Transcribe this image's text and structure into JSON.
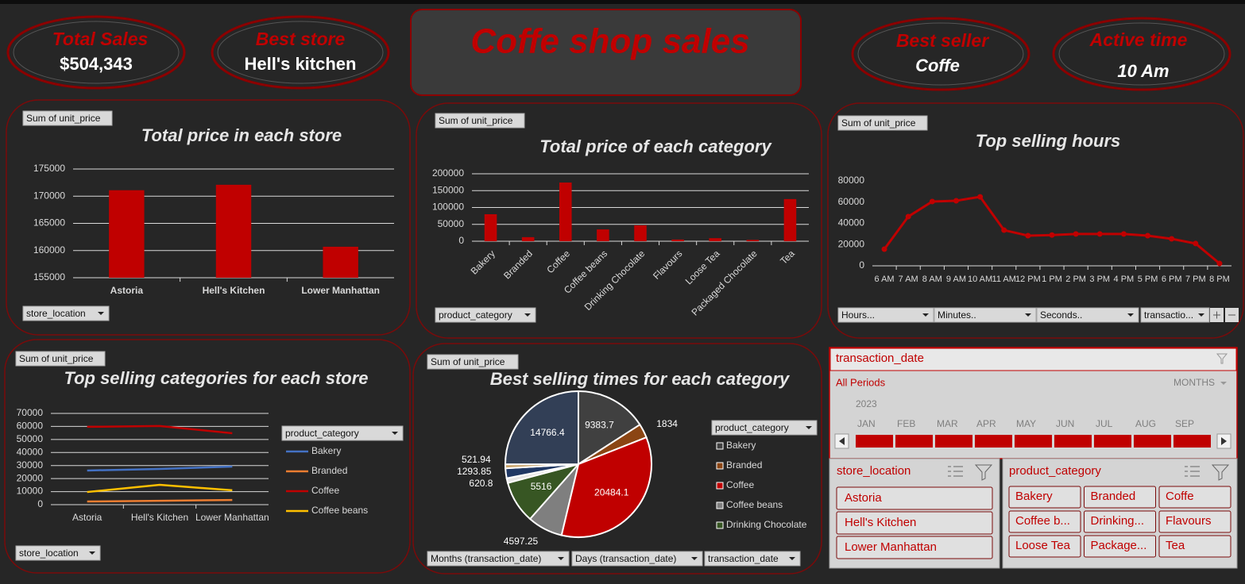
{
  "header": {
    "title": "Coffe shop sales"
  },
  "kpis": [
    {
      "label": "Total Sales",
      "value": "$504,343"
    },
    {
      "label": "Best store",
      "value": "Hell's kitchen"
    },
    {
      "label": "Best seller",
      "value": "Coffe"
    },
    {
      "label": "Active time",
      "value": "10 Am"
    }
  ],
  "chart_data": [
    {
      "type": "bar",
      "title": "Total price in each store",
      "value_field": "Sum of unit_price",
      "axis_fields": [
        "store_location"
      ],
      "categories": [
        "Astoria",
        "Hell's Kitchen",
        "Lower Manhattan"
      ],
      "values": [
        171100,
        172100,
        160700
      ],
      "color": "#c00000",
      "ylim": [
        155000,
        175000
      ],
      "yticks": [
        155000,
        160000,
        165000,
        170000,
        175000
      ],
      "grid": true
    },
    {
      "type": "bar",
      "title": "Total price of each category",
      "value_field": "Sum of unit_price",
      "axis_fields": [
        "product_category"
      ],
      "categories": [
        "Bakery",
        "Branded",
        "Coffee",
        "Coffee beans",
        "Drinking Chocolate",
        "Flavours",
        "Loose Tea",
        "Packaged Chocolate",
        "Tea"
      ],
      "values": [
        80000,
        12000,
        174000,
        35000,
        47000,
        5000,
        9000,
        4000,
        125000
      ],
      "color": "#c00000",
      "ylim": [
        0,
        200000
      ],
      "yticks": [
        0,
        50000,
        100000,
        150000,
        200000
      ],
      "grid": true
    },
    {
      "type": "line",
      "title": "Top selling hours",
      "value_field": "Sum of unit_price",
      "axis_fields": [
        "Hours...",
        "Minutes..",
        "Seconds..",
        "transactio..."
      ],
      "categories": [
        "6 AM",
        "7 AM",
        "8 AM",
        "9 AM",
        "10 AM",
        "11 AM",
        "12 PM",
        "1 PM",
        "2 PM",
        "3 PM",
        "4 PM",
        "5 PM",
        "6 PM",
        "7 PM",
        "8 PM"
      ],
      "values": [
        15700,
        46400,
        60600,
        61300,
        65000,
        33600,
        28400,
        29000,
        30000,
        30000,
        30000,
        28400,
        25400,
        21000,
        2200
      ],
      "color": "#c00000",
      "markers": true,
      "ylim": [
        0,
        80000
      ],
      "yticks": [
        0,
        20000,
        40000,
        60000,
        80000
      ],
      "grid": false
    },
    {
      "type": "line",
      "title": "Top selling categories for each store",
      "value_field": "Sum of unit_price",
      "axis_fields": [
        "store_location"
      ],
      "legend_field": "product_category",
      "categories": [
        "Astoria",
        "Hell's Kitchen",
        "Lower Manhattan"
      ],
      "series": [
        {
          "name": "Bakery",
          "color": "#4472c4",
          "values": [
            26200,
            27400,
            29200
          ]
        },
        {
          "name": "Branded",
          "color": "#ed7d31",
          "values": [
            2400,
            3000,
            3600
          ]
        },
        {
          "name": "Coffee",
          "color": "#c00000",
          "values": [
            59700,
            60300,
            54800
          ]
        },
        {
          "name": "Coffee beans",
          "color": "#ffc000",
          "values": [
            9700,
            15200,
            11000
          ]
        }
      ],
      "ylim": [
        0,
        70000
      ],
      "yticks": [
        0,
        10000,
        20000,
        30000,
        40000,
        50000,
        60000,
        70000
      ],
      "grid": true
    },
    {
      "type": "pie",
      "title": "Best selling times for each category",
      "value_field": "Sum of unit_price",
      "axis_fields": [
        "Months (transaction_date)",
        "Days (transaction_date)",
        "transaction_date"
      ],
      "legend_field": "product_category",
      "categories": [
        "Bakery",
        "Branded",
        "Coffee",
        "Coffee beans",
        "Drinking Chocolate",
        null,
        null,
        null,
        null
      ],
      "values": [
        9383.7,
        1834,
        20484.1,
        4597.25,
        5516,
        620.8,
        1293.85,
        521.94,
        14766.4
      ],
      "colors": [
        "#404040",
        "#8b4513",
        "#c00000",
        "#7f7f7f",
        "#375623",
        "#e7e6e6",
        "#203864",
        "#c9a46c",
        "#323f56"
      ]
    }
  ],
  "timeline": {
    "title": "transaction_date",
    "period": "All Periods",
    "level": "MONTHS",
    "year": "2023",
    "months": [
      "JAN",
      "FEB",
      "MAR",
      "APR",
      "MAY",
      "JUN",
      "JUL",
      "AUG",
      "SEP"
    ]
  },
  "slicers": [
    {
      "title": "store_location",
      "items": [
        "Astoria",
        "Hell's Kitchen",
        "Lower Manhattan"
      ]
    },
    {
      "title": "product_category",
      "items": [
        "Bakery",
        "Branded",
        "Coffe",
        "Coffee b...",
        "Drinking...",
        "Flavours",
        "Loose Tea",
        "Package...",
        "Tea"
      ]
    }
  ]
}
